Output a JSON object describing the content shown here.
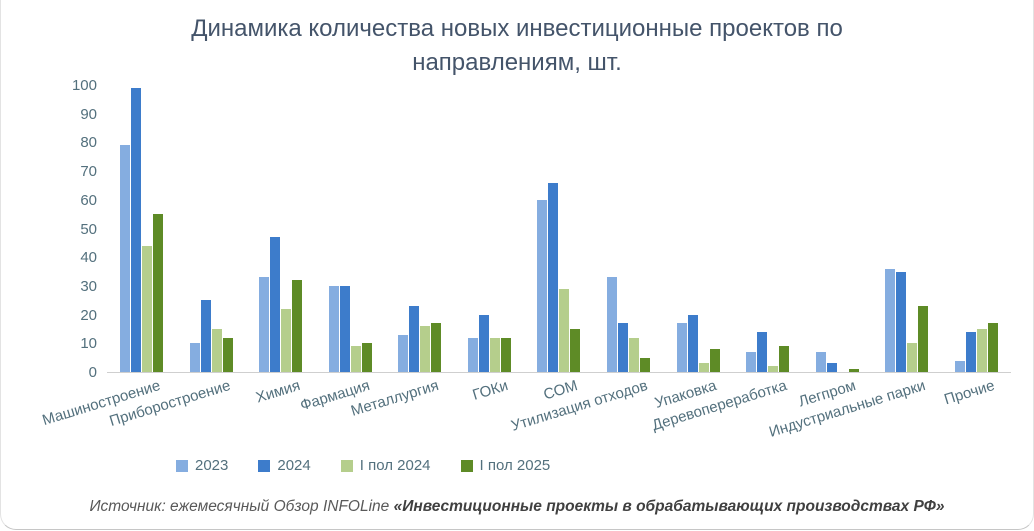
{
  "title": "Динамика количества новых инвестиционные проектов по направлениям, шт.",
  "source": {
    "prefix": "Источник: ежемесячный Обзор INFOLine ",
    "bold_part": "«Инвестиционные проекты в обрабатывающих производствах РФ»"
  },
  "chart_data": {
    "type": "bar",
    "title": "Динамика количества новых инвестиционные проектов по направлениям, шт.",
    "categories": [
      "Машиностроение",
      "Приборостроение",
      "Химия",
      "Фармация",
      "Металлургия",
      "ГОКи",
      "СОМ",
      "Утилизация отходов",
      "Упаковка",
      "Деревопереработка",
      "Легпром",
      "Индустриальные парки",
      "Прочие"
    ],
    "series": [
      {
        "name": "2023",
        "color": "#85ADE0",
        "values": [
          79,
          10,
          33,
          30,
          13,
          12,
          60,
          33,
          17,
          7,
          7,
          36,
          4
        ]
      },
      {
        "name": "2024",
        "color": "#3D7CCB",
        "values": [
          99,
          25,
          47,
          30,
          23,
          20,
          66,
          17,
          20,
          14,
          3,
          35,
          14
        ]
      },
      {
        "name": "I пол 2024",
        "color": "#B5CE8C",
        "values": [
          44,
          15,
          22,
          9,
          16,
          12,
          29,
          12,
          3,
          2,
          0,
          10,
          15
        ]
      },
      {
        "name": "I пол 2025",
        "color": "#5E8B26",
        "values": [
          55,
          12,
          32,
          10,
          17,
          12,
          15,
          5,
          8,
          9,
          1,
          23,
          17
        ]
      }
    ],
    "xlabel": "",
    "ylabel": "",
    "ylim": [
      0,
      100
    ],
    "yticks": [
      0,
      10,
      20,
      30,
      40,
      50,
      60,
      70,
      80,
      90,
      100
    ],
    "grid": false,
    "legend_position": "bottom"
  }
}
